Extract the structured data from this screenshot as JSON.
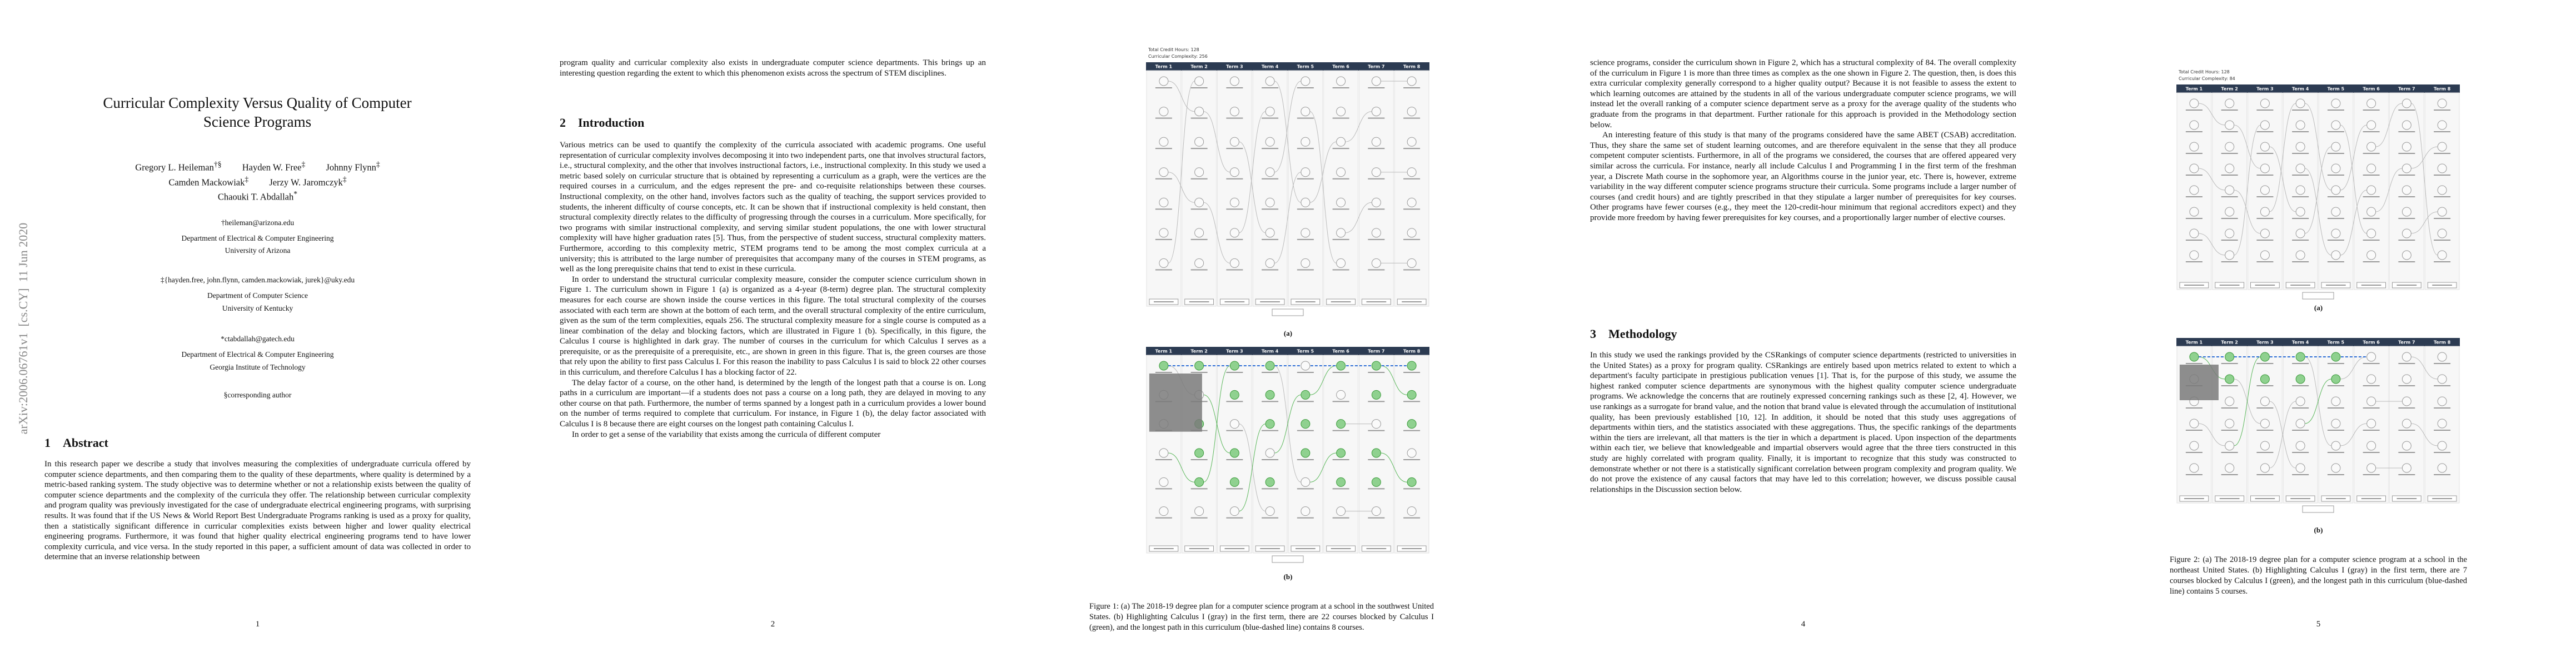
{
  "page1": {
    "arxiv_id": "arXiv:2006.06761v1  [cs.CY]  11 Jun 2020",
    "title": "Curricular Complexity Versus Quality of Computer Science Programs",
    "authors": [
      {
        "name": "Gregory L. Heileman",
        "mark": "†§"
      },
      {
        "name": "Hayden W. Free",
        "mark": "‡"
      },
      {
        "name": "Johnny Flynn",
        "mark": "‡"
      },
      {
        "name": "Camden Mackowiak",
        "mark": "‡"
      },
      {
        "name": "Jerzy W. Jaromczyk",
        "mark": "‡"
      },
      {
        "name": "Chaouki T. Abdallah",
        "mark": "*"
      }
    ],
    "affiliations": [
      {
        "email": "†heileman@arizona.edu",
        "department": "Department of Electrical & Computer Engineering",
        "institution": "University of Arizona"
      },
      {
        "email": "‡{hayden.free, john.flynn, camden.mackowiak, jurek}@uky.edu",
        "department": "Department of Computer Science",
        "institution": "University of Kentucky"
      },
      {
        "email": "*ctabdallah@gatech.edu",
        "department": "Department of Electrical & Computer Engineering",
        "institution": "Georgia Institute of Technology"
      }
    ],
    "corresponding": "§corresponding author",
    "section": {
      "number": "1",
      "title": "Abstract"
    },
    "abstract": "In this research paper we describe a study that involves measuring the complexities of undergraduate curricula offered by computer science departments, and then comparing them to the quality of these departments, where quality is determined by a metric-based ranking system. The study objective was to determine whether or not a relationship exists between the quality of computer science departments and the complexity of the curricula they offer. The relationship between curricular complexity and program quality was previously investigated for the case of undergraduate electrical engineering programs, with surprising results. It was found that if the US News & World Report Best Undergraduate Programs ranking is used as a proxy for quality, then a statistically significant difference in curricular complexities exists between higher and lower quality electrical engineering programs. Furthermore, it was found that higher quality electrical engineering programs tend to have lower complexity curricula, and vice versa. In the study reported in this paper, a sufficient amount of data was collected in order to determine that an inverse relationship between",
    "page_number": "1"
  },
  "page2": {
    "continued_text": "program quality and curricular complexity also exists in undergraduate computer science departments. This brings up an interesting question regarding the extent to which this phenomenon exists across the spectrum of STEM disciplines.",
    "section": {
      "number": "2",
      "title": "Introduction"
    },
    "paragraphs": [
      "Various metrics can be used to quantify the complexity of the curricula associated with academic programs. One useful representation of curricular complexity involves decomposing it into two independent parts, one that involves structural factors, i.e., structural complexity, and the other that involves instructional factors, i.e., instructional complexity. In this study we used a metric based solely on curricular structure that is obtained by representing a curriculum as a graph, were the vertices are the required courses in a curriculum, and the edges represent the pre- and co-requisite relationships between these courses. Instructional complexity, on the other hand, involves factors such as the quality of teaching, the support services provided to students, the inherent difficulty of course concepts, etc. It can be shown that if instructional complexity is held constant, then structural complexity directly relates to the difficulty of progressing through the courses in a curriculum. More specifically, for two programs with similar instructional complexity, and serving similar student populations, the one with lower structural complexity will have higher graduation rates [5]. Thus, from the perspective of student success, structural complexity matters. Furthermore, according to this complexity metric, STEM programs tend to be among the most complex curricula at a university; this is attributed to the large number of prerequisites that accompany many of the courses in STEM programs, as well as the long prerequisite chains that tend to exist in these curricula.",
      "In order to understand the structural curricular complexity measure, consider the computer science curriculum shown in Figure 1. The curriculum shown in Figure 1 (a) is organized as a 4-year (8-term) degree plan. The structural complexity measures for each course are shown inside the course vertices in this figure. The total structural complexity of the courses associated with each term are shown at the bottom of each term, and the overall structural complexity of the entire curriculum, given as the sum of the term complexities, equals 256. The structural complexity measure for a single course is computed as a linear combination of the delay and blocking factors, which are illustrated in Figure 1 (b). Specifically, in this figure, the Calculus I course is highlighted in dark gray. The number of courses in the curriculum for which Calculus I serves as a prerequisite, or as the prerequisite of a prerequisite, etc., are shown in green in this figure. That is, the green courses are those that rely upon the ability to first pass Calculus I. For this reason the inability to pass Calculus I is said to block 22 other courses in this curriculum, and therefore Calculus I has a blocking factor of 22.",
      "The delay factor of a course, on the other hand, is determined by the length of the longest path that a course is on. Long paths in a curriculum are important—if a students does not pass a course on a long path, they are delayed in moving to any other course on that path. Furthermore, the number of terms spanned by a longest path in a curriculum provides a lower bound on the number of terms required to complete that curriculum. For instance, in Figure 1 (b), the delay factor associated with Calculus I is 8 because there are eight courses on the longest path containing Calculus I.",
      "In order to get a sense of the variability that exists among the curricula of different computer"
    ],
    "page_number": "2"
  },
  "page3": {
    "figure_a": {
      "total_credit_hours": "Total Credit Hours: 128",
      "curricular_complexity": "Curricular Complexity: 256",
      "terms": [
        "Term 1",
        "Term 2",
        "Term 3",
        "Term 4",
        "Term 5",
        "Term 6",
        "Term 7",
        "Term 8"
      ],
      "label": "(a)"
    },
    "figure_b": {
      "terms": [
        "Term 1",
        "Term 2",
        "Term 3",
        "Term 4",
        "Term 5",
        "Term 6",
        "Term 7",
        "Term 8"
      ],
      "label": "(b)"
    },
    "caption": "Figure 1: (a) The 2018-19 degree plan for a computer science program at a school in the southwest United States. (b) Highlighting Calculus I (gray) in the first term, there are 22 courses blocked by Calculus I (green), and the longest path in this curriculum (blue-dashed line) contains 8 courses."
  },
  "page4": {
    "paragraphs": [
      "science programs, consider the curriculum shown in Figure 2, which has a structural complexity of 84. The overall complexity of the curriculum in Figure 1 is more than three times as complex as the one shown in Figure 2. The question, then, is does this extra curricular complexity generally correspond to a higher quality output? Because it is not feasible to assess the extent to which learning outcomes are attained by the students in all of the various undergraduate computer science programs, we will instead let the overall ranking of a computer science department serve as a proxy for the average quality of the students who graduate from the programs in that department. Further rationale for this approach is provided in the Methodology section below.",
      "An interesting feature of this study is that many of the programs considered have the same ABET (CSAB) accreditation. Thus, they share the same set of student learning outcomes, and are therefore equivalent in the sense that they all produce competent computer scientists. Furthermore, in all of the programs we considered, the courses that are offered appeared very similar across the curricula. For instance, nearly all include Calculus I and Programming I in the first term of the freshman year, a Discrete Math course in the sophomore year, an Algorithms course in the junior year, etc. There is, however, extreme variability in the way different computer science programs structure their curricula. Some programs include a larger number of courses (and credit hours) and are tightly prescribed in that they stipulate a larger number of prerequisites for key courses. Other programs have fewer courses (e.g., they meet the 120-credit-hour minimum that regional accreditors expect) and they provide more freedom by having fewer prerequisites for key courses, and a proportionally larger number of elective courses."
    ],
    "section": {
      "number": "3",
      "title": "Methodology"
    },
    "section_paragraphs": [
      "In this study we used the rankings provided by the CSRankings of computer science departments (restricted to universities in the United States) as a proxy for program quality. CSRankings are entirely based upon metrics related to extent to which a department's faculty participate in prestigious publication venues [1]. That is, for the purpose of this study, we assume the highest ranked computer science departments are synonymous with the highest quality computer science undergraduate programs. We acknowledge the concerns that are routinely expressed concerning rankings such as these [2, 4]. However, we use rankings as a surrogate for brand value, and the notion that brand value is elevated through the accumulation of institutional quality, has been previously established [10, 12]. In addition, it should be noted that this study uses aggregations of departments within tiers, and the statistics associated with these aggregations. Thus, the specific rankings of the departments within the tiers are irrelevant, all that matters is the tier in which a department is placed. Upon inspection of the departments within each tier, we believe that knowledgeable and impartial observers would agree that the three tiers constructed in this study are highly correlated with program quality. Finally, it is important to recognize that this study was constructed to demonstrate whether or not there is a statistically significant correlation between program complexity and program quality. We do not prove the existence of any causal factors that may have led to this correlation; however, we discuss possible causal relationships in the Discussion section below."
    ],
    "page_number": "4"
  },
  "page5": {
    "figure_a": {
      "total_credit_hours": "Total Credit Hours: 128",
      "curricular_complexity": "Curricular Complexity: 84",
      "terms": [
        "Term 1",
        "Term 2",
        "Term 3",
        "Term 4",
        "Term 5",
        "Term 6",
        "Term 7",
        "Term 8"
      ],
      "label": "(a)"
    },
    "figure_b": {
      "terms": [
        "Term 1",
        "Term 2",
        "Term 3",
        "Term 4",
        "Term 5",
        "Term 6",
        "Term 7",
        "Term 8"
      ],
      "label": "(b)"
    },
    "caption": "Figure 2: (a) The 2018-19 degree plan for a computer science program at a school in the northeast United States. (b) Highlighting Calculus I (gray) in the first term, there are 7 courses blocked by Calculus I (green), and the longest path in this curriculum (blue-dashed line) contains 5 courses.",
    "page_number": "5"
  }
}
